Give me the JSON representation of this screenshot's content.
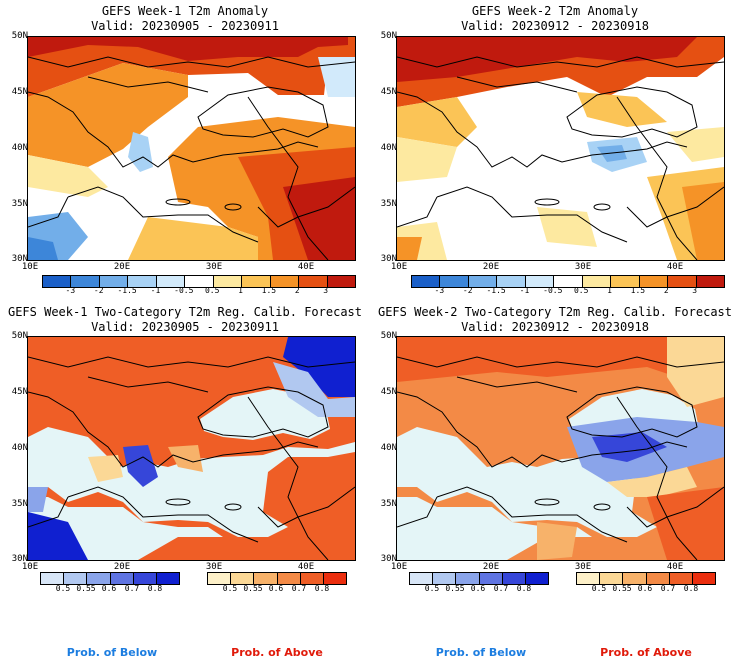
{
  "panels": [
    {
      "title1": "GEFS Week-1 T2m Anomaly",
      "title2": "Valid: 20230905 - 20230911"
    },
    {
      "title1": "GEFS Week-2 T2m Anomaly",
      "title2": "Valid: 20230912 - 20230918"
    },
    {
      "title1": "GEFS Week-1 Two-Category T2m Reg. Calib. Forecast",
      "title2": "Valid: 20230905 - 20230911"
    },
    {
      "title1": "GEFS Week-2 Two-Category T2m Reg. Calib. Forecast",
      "title2": "Valid: 20230912 - 20230918"
    }
  ],
  "lat_labels": [
    "50N",
    "45N",
    "40N",
    "35N",
    "30N"
  ],
  "lon_labels": [
    "10E",
    "20E",
    "30E",
    "40E"
  ],
  "anomaly_colorbar": {
    "labels": [
      "-3",
      "-2",
      "-1.5",
      "-1",
      "-0.5",
      "0.5",
      "1",
      "1.5",
      "2",
      "3"
    ],
    "colors": [
      "#1a5fc8",
      "#3d86d9",
      "#72aee9",
      "#a8d2f5",
      "#d2eafb",
      "#ffffff",
      "#fde9a0",
      "#fbc456",
      "#f59327",
      "#e55012",
      "#c01a0e"
    ]
  },
  "prob_below_colorbar": {
    "labels": [
      "0.5",
      "0.55",
      "0.6",
      "0.7",
      "0.8"
    ],
    "colors": [
      "#d8e6f7",
      "#b1c8f0",
      "#8aa4ea",
      "#5f74e2",
      "#3646d9",
      "#1020d0"
    ]
  },
  "prob_above_colorbar": {
    "labels": [
      "0.5",
      "0.55",
      "0.6",
      "0.7",
      "0.8"
    ],
    "colors": [
      "#fdf0c8",
      "#fbd896",
      "#f7b26a",
      "#f38a46",
      "#ef5e26",
      "#eb2e0e"
    ]
  },
  "prob_labels": {
    "below": "Prob. of Below",
    "above": "Prob. of Above"
  },
  "colors": {
    "prob_below": "#1c7de0",
    "prob_above": "#e01a0a",
    "sea": "#e4f5f7"
  }
}
